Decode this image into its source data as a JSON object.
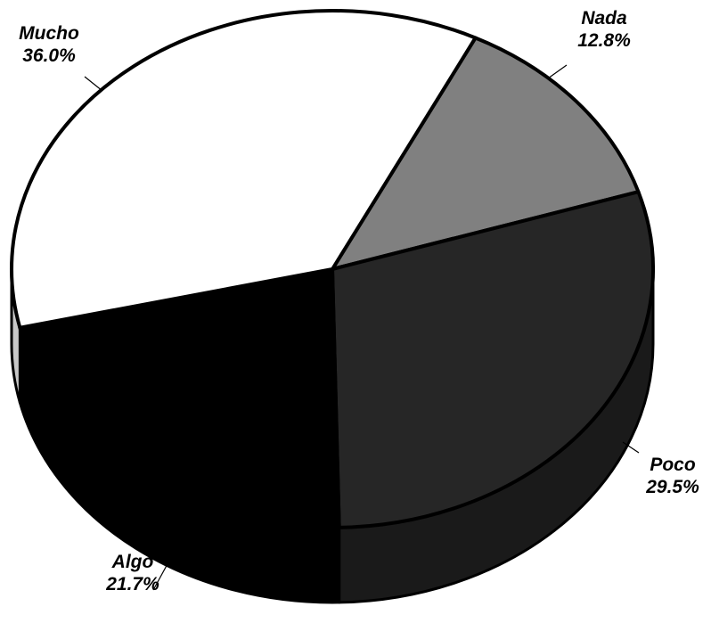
{
  "chart_data": {
    "type": "pie",
    "style": "3d",
    "categories": [
      "Nada",
      "Poco",
      "Algo",
      "Mucho"
    ],
    "values": [
      12.8,
      29.5,
      21.7,
      36.0
    ],
    "value_labels": [
      "12.8%",
      "29.5%",
      "21.7%",
      "36.0%"
    ],
    "title": "",
    "legend": "none",
    "colors": [
      "#808080",
      "#262626",
      "#000000",
      "#ffffff"
    ]
  }
}
